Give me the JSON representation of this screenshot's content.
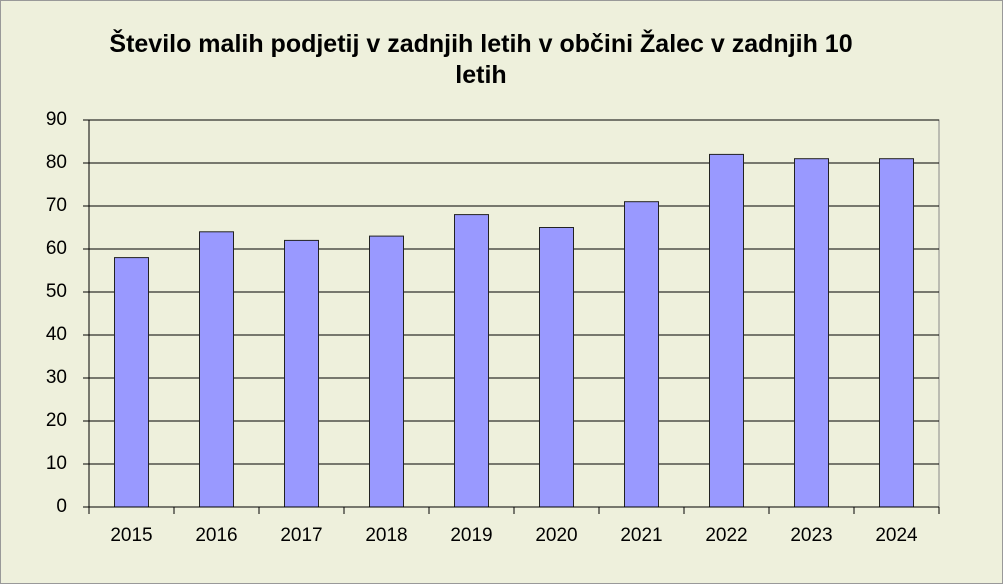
{
  "chart_data": {
    "type": "bar",
    "title": "Število malih podjetij v zadnjih letih v občini Žalec v zadnjih 10 letih",
    "categories": [
      "2015",
      "2016",
      "2017",
      "2018",
      "2019",
      "2020",
      "2021",
      "2022",
      "2023",
      "2024"
    ],
    "values": [
      58,
      64,
      62,
      63,
      68,
      65,
      71,
      82,
      81,
      81
    ],
    "color": "#9999ff",
    "ylim": [
      0,
      90
    ],
    "yticks": [
      0,
      10,
      20,
      30,
      40,
      50,
      60,
      70,
      80,
      90
    ],
    "grid": true
  }
}
